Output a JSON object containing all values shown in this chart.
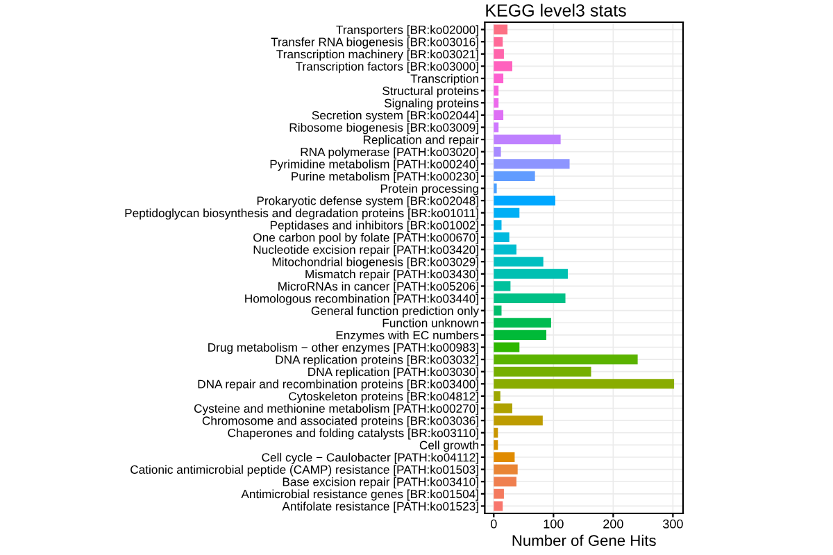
{
  "chart_data": {
    "type": "bar",
    "orientation": "horizontal",
    "title": "KEGG level3 stats",
    "xlabel": "Number of Gene Hits",
    "categories": [
      "Transporters [BR:ko02000]",
      "Transfer RNA biogenesis [BR:ko03016]",
      "Transcription machinery [BR:ko03021]",
      "Transcription factors [BR:ko03000]",
      "Transcription",
      "Structural proteins",
      "Signaling proteins",
      "Secretion system [BR:ko02044]",
      "Ribosome biogenesis [BR:ko03009]",
      "Replication and repair",
      "RNA polymerase [PATH:ko03020]",
      "Pyrimidine metabolism [PATH:ko00240]",
      "Purine metabolism [PATH:ko00230]",
      "Protein processing",
      "Prokaryotic defense system [BR:ko02048]",
      "Peptidoglycan biosynthesis and degradation proteins [BR:ko01011]",
      "Peptidases and inhibitors [BR:ko01002]",
      "One carbon pool by folate [PATH:ko00670]",
      "Nucleotide excision repair [PATH:ko03420]",
      "Mitochondrial biogenesis [BR:ko03029]",
      "Mismatch repair [PATH:ko03430]",
      "MicroRNAs in cancer [PATH:ko05206]",
      "Homologous recombination [PATH:ko03440]",
      "General function prediction only",
      "Function unknown",
      "Enzymes with EC numbers",
      "Drug metabolism − other enzymes [PATH:ko00983]",
      "DNA replication proteins [BR:ko03032]",
      "DNA replication [PATH:ko03030]",
      "DNA repair and recombination proteins [BR:ko03400]",
      "Cytoskeleton proteins [BR:ko04812]",
      "Cysteine and methionine metabolism [PATH:ko00270]",
      "Chromosome and associated proteins [BR:ko03036]",
      "Chaperones and folding catalysts [BR:ko03110]",
      "Cell growth",
      "Cell cycle − Caulobacter [PATH:ko04112]",
      "Cationic antimicrobial peptide (CAMP) resistance [PATH:ko01503]",
      "Base excision repair [PATH:ko03410]",
      "Antimicrobial resistance genes [BR:ko01504]",
      "Antifolate resistance [PATH:ko01523]"
    ],
    "values": [
      23,
      15,
      17,
      31,
      16,
      8,
      8,
      16,
      8,
      112,
      12,
      127,
      69,
      5,
      103,
      43,
      13,
      26,
      38,
      83,
      124,
      28,
      120,
      13,
      96,
      88,
      43,
      241,
      163,
      302,
      11,
      31,
      82,
      7,
      7,
      35,
      40,
      38,
      17,
      15
    ],
    "colors": [
      "#FC7084",
      "#FF6A98",
      "#FF65AB",
      "#FF62BE",
      "#FD61D0",
      "#F763DF",
      "#EC69EC",
      "#DE6FF5",
      "#CF78FF",
      "#BE80FF",
      "#A88BFF",
      "#8D95FF",
      "#619CFF",
      "#4A9FFF",
      "#00A7FF",
      "#00AFF5",
      "#00B6EB",
      "#00B9DE",
      "#00BDCF",
      "#00BFC0",
      "#00C0B2",
      "#00C19C",
      "#00C086",
      "#00BE6C",
      "#00BC52",
      "#00BA38",
      "#2EB700",
      "#5BB300",
      "#76AF00",
      "#89AC00",
      "#9DA700",
      "#AFA200",
      "#BD9C00",
      "#C99600",
      "#D49000",
      "#E08B00",
      "#E98535",
      "#EF7F4F",
      "#F47A5E",
      "#F8766D"
    ],
    "xlim": [
      -15,
      317
    ],
    "xticks": [
      0,
      100,
      200,
      300
    ],
    "grid": true
  }
}
